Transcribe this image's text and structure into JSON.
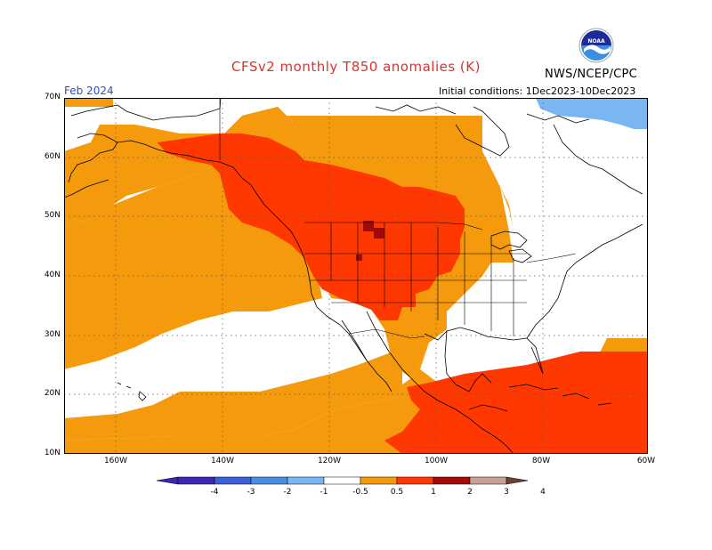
{
  "title": "CFSv2 monthly T850 anomalies (K)",
  "agency": "NWS/NCEP/CPC",
  "month": "Feb 2024",
  "initial_conditions": "Initial conditions: 1Dec2023-10Dec2023",
  "logo_text": "NOAA",
  "lat_labels": [
    "70N",
    "60N",
    "50N",
    "40N",
    "30N",
    "20N",
    "10N"
  ],
  "lon_labels": [
    "160W",
    "140W",
    "120W",
    "100W",
    "80W",
    "60W"
  ],
  "colorbar": {
    "labels": [
      "-4",
      "-3",
      "-2",
      "-1",
      "-0.5",
      "0.5",
      "1",
      "2",
      "3",
      "4"
    ],
    "colors": [
      "#3a28b4",
      "#3f5fd8",
      "#4a8de6",
      "#79b6f2",
      "#ffffff",
      "#f59a0c",
      "#fe3800",
      "#a00a0a",
      "#c9a096",
      "#6e4030"
    ]
  },
  "anomaly_colors": {
    "0.5-1": "#f59a0c",
    "1-2": "#fe3800",
    "2-3": "#a00a0a",
    "-1--0.5": "#79b6f2"
  }
}
